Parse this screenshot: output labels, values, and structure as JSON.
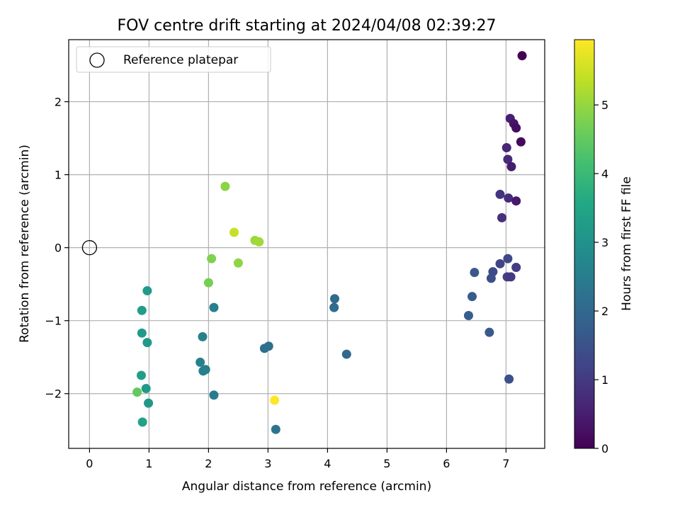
{
  "chart_data": {
    "type": "scatter",
    "title": "FOV centre drift starting at 2024/04/08 02:39:27",
    "xlabel": "Angular distance from reference (arcmin)",
    "ylabel": "Rotation from reference (arcmin)",
    "xlim": [
      -0.35,
      7.65
    ],
    "ylim": [
      -2.75,
      2.85
    ],
    "xticks": [
      0,
      1,
      2,
      3,
      4,
      5,
      6,
      7
    ],
    "yticks": [
      -2,
      -1,
      0,
      1,
      2
    ],
    "xtick_labels": [
      "0",
      "1",
      "2",
      "3",
      "4",
      "5",
      "6",
      "7"
    ],
    "ytick_labels": [
      "−2",
      "−1",
      "0",
      "1",
      "2"
    ],
    "grid": true,
    "legend": {
      "placement": "top-left",
      "entries": [
        "Reference platepar"
      ]
    },
    "reference_point": {
      "x": 0,
      "y": 0
    },
    "colorbar": {
      "label": "Hours from first FF file",
      "range": [
        0,
        5.95
      ],
      "ticks": [
        0,
        1,
        2,
        3,
        4,
        5
      ],
      "tick_labels": [
        "0",
        "1",
        "2",
        "3",
        "4",
        "5"
      ],
      "colormap": "viridis"
    },
    "points": [
      {
        "x": 7.27,
        "y": 2.63,
        "c": 0.02
      },
      {
        "x": 7.07,
        "y": 1.77,
        "c": 0.5
      },
      {
        "x": 7.13,
        "y": 1.7,
        "c": 0.3
      },
      {
        "x": 7.17,
        "y": 1.64,
        "c": 0.2
      },
      {
        "x": 7.25,
        "y": 1.45,
        "c": 0.15
      },
      {
        "x": 7.01,
        "y": 1.37,
        "c": 0.65
      },
      {
        "x": 7.03,
        "y": 1.21,
        "c": 0.7
      },
      {
        "x": 7.09,
        "y": 1.11,
        "c": 0.45
      },
      {
        "x": 6.9,
        "y": 0.73,
        "c": 0.9
      },
      {
        "x": 7.04,
        "y": 0.68,
        "c": 0.75
      },
      {
        "x": 7.17,
        "y": 0.64,
        "c": 0.4
      },
      {
        "x": 6.93,
        "y": 0.41,
        "c": 0.8
      },
      {
        "x": 7.03,
        "y": -0.15,
        "c": 1.3
      },
      {
        "x": 6.9,
        "y": -0.22,
        "c": 1.2
      },
      {
        "x": 7.17,
        "y": -0.27,
        "c": 1.05
      },
      {
        "x": 6.78,
        "y": -0.33,
        "c": 1.35
      },
      {
        "x": 6.47,
        "y": -0.34,
        "c": 1.6
      },
      {
        "x": 6.75,
        "y": -0.42,
        "c": 1.4
      },
      {
        "x": 7.02,
        "y": -0.4,
        "c": 1.1
      },
      {
        "x": 7.08,
        "y": -0.4,
        "c": 1.0
      },
      {
        "x": 6.43,
        "y": -0.67,
        "c": 1.7
      },
      {
        "x": 6.37,
        "y": -0.93,
        "c": 1.75
      },
      {
        "x": 6.72,
        "y": -1.16,
        "c": 1.65
      },
      {
        "x": 7.05,
        "y": -1.8,
        "c": 1.45
      },
      {
        "x": 4.12,
        "y": -0.7,
        "c": 2.05
      },
      {
        "x": 4.11,
        "y": -0.82,
        "c": 2.1
      },
      {
        "x": 4.32,
        "y": -1.46,
        "c": 2.0
      },
      {
        "x": 3.01,
        "y": -1.35,
        "c": 2.15
      },
      {
        "x": 2.94,
        "y": -1.38,
        "c": 2.2
      },
      {
        "x": 3.13,
        "y": -2.49,
        "c": 2.25
      },
      {
        "x": 2.09,
        "y": -0.82,
        "c": 2.55
      },
      {
        "x": 1.9,
        "y": -1.22,
        "c": 2.6
      },
      {
        "x": 1.86,
        "y": -1.57,
        "c": 2.6
      },
      {
        "x": 1.95,
        "y": -1.67,
        "c": 2.5
      },
      {
        "x": 1.91,
        "y": -1.69,
        "c": 2.55
      },
      {
        "x": 2.09,
        "y": -2.02,
        "c": 2.45
      },
      {
        "x": 0.97,
        "y": -0.59,
        "c": 3.2
      },
      {
        "x": 0.88,
        "y": -0.86,
        "c": 3.3
      },
      {
        "x": 0.88,
        "y": -1.17,
        "c": 3.2
      },
      {
        "x": 0.97,
        "y": -1.3,
        "c": 3.15
      },
      {
        "x": 0.87,
        "y": -1.75,
        "c": 3.3
      },
      {
        "x": 0.95,
        "y": -1.93,
        "c": 3.2
      },
      {
        "x": 0.99,
        "y": -2.13,
        "c": 3.15
      },
      {
        "x": 0.89,
        "y": -2.39,
        "c": 3.4
      },
      {
        "x": 0.8,
        "y": -1.98,
        "c": 4.5
      },
      {
        "x": 2.28,
        "y": 0.84,
        "c": 4.9
      },
      {
        "x": 2.05,
        "y": -0.15,
        "c": 4.8
      },
      {
        "x": 2.0,
        "y": -0.48,
        "c": 4.7
      },
      {
        "x": 2.5,
        "y": -0.21,
        "c": 4.95
      },
      {
        "x": 2.43,
        "y": 0.21,
        "c": 5.45
      },
      {
        "x": 2.78,
        "y": 0.1,
        "c": 5.05
      },
      {
        "x": 2.85,
        "y": 0.08,
        "c": 5.1
      },
      {
        "x": 3.11,
        "y": -2.09,
        "c": 5.95
      }
    ]
  }
}
